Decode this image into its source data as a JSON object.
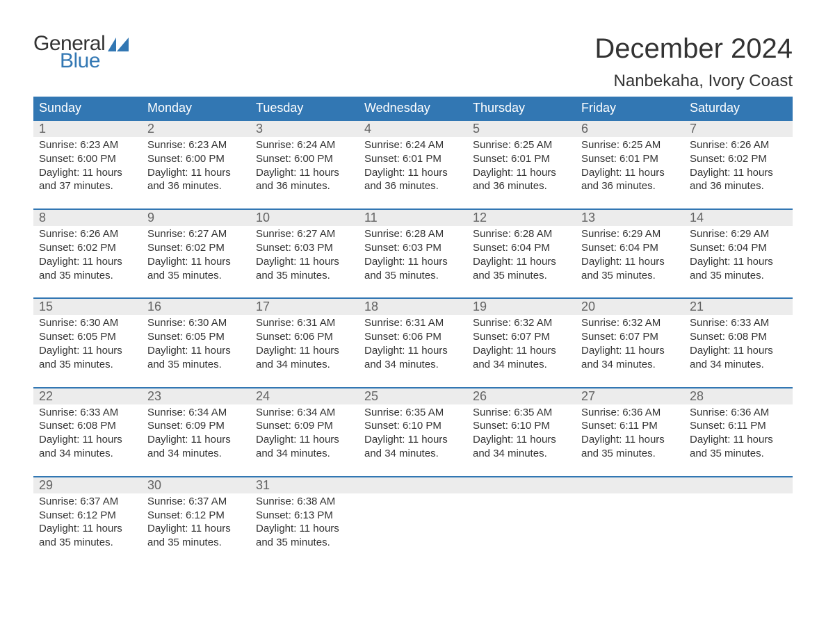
{
  "logo": {
    "word1": "General",
    "word2": "Blue",
    "flag_color": "#3277b3"
  },
  "title": "December 2024",
  "location": "Nanbekaha, Ivory Coast",
  "colors": {
    "header_bg": "#3277b3",
    "header_text": "#ffffff",
    "strip_bg": "#ececec",
    "daynum_text": "#636363",
    "body_text": "#333333",
    "rule": "#3277b3",
    "page_bg": "#ffffff"
  },
  "typography": {
    "month_title_pt": 40,
    "location_pt": 24,
    "dow_pt": 18,
    "daynum_pt": 18,
    "body_pt": 15,
    "logo_pt": 30
  },
  "days_of_week": [
    "Sunday",
    "Monday",
    "Tuesday",
    "Wednesday",
    "Thursday",
    "Friday",
    "Saturday"
  ],
  "weeks": [
    [
      {
        "n": "1",
        "sunrise": "Sunrise: 6:23 AM",
        "sunset": "Sunset: 6:00 PM",
        "dl1": "Daylight: 11 hours",
        "dl2": "and 37 minutes."
      },
      {
        "n": "2",
        "sunrise": "Sunrise: 6:23 AM",
        "sunset": "Sunset: 6:00 PM",
        "dl1": "Daylight: 11 hours",
        "dl2": "and 36 minutes."
      },
      {
        "n": "3",
        "sunrise": "Sunrise: 6:24 AM",
        "sunset": "Sunset: 6:00 PM",
        "dl1": "Daylight: 11 hours",
        "dl2": "and 36 minutes."
      },
      {
        "n": "4",
        "sunrise": "Sunrise: 6:24 AM",
        "sunset": "Sunset: 6:01 PM",
        "dl1": "Daylight: 11 hours",
        "dl2": "and 36 minutes."
      },
      {
        "n": "5",
        "sunrise": "Sunrise: 6:25 AM",
        "sunset": "Sunset: 6:01 PM",
        "dl1": "Daylight: 11 hours",
        "dl2": "and 36 minutes."
      },
      {
        "n": "6",
        "sunrise": "Sunrise: 6:25 AM",
        "sunset": "Sunset: 6:01 PM",
        "dl1": "Daylight: 11 hours",
        "dl2": "and 36 minutes."
      },
      {
        "n": "7",
        "sunrise": "Sunrise: 6:26 AM",
        "sunset": "Sunset: 6:02 PM",
        "dl1": "Daylight: 11 hours",
        "dl2": "and 36 minutes."
      }
    ],
    [
      {
        "n": "8",
        "sunrise": "Sunrise: 6:26 AM",
        "sunset": "Sunset: 6:02 PM",
        "dl1": "Daylight: 11 hours",
        "dl2": "and 35 minutes."
      },
      {
        "n": "9",
        "sunrise": "Sunrise: 6:27 AM",
        "sunset": "Sunset: 6:02 PM",
        "dl1": "Daylight: 11 hours",
        "dl2": "and 35 minutes."
      },
      {
        "n": "10",
        "sunrise": "Sunrise: 6:27 AM",
        "sunset": "Sunset: 6:03 PM",
        "dl1": "Daylight: 11 hours",
        "dl2": "and 35 minutes."
      },
      {
        "n": "11",
        "sunrise": "Sunrise: 6:28 AM",
        "sunset": "Sunset: 6:03 PM",
        "dl1": "Daylight: 11 hours",
        "dl2": "and 35 minutes."
      },
      {
        "n": "12",
        "sunrise": "Sunrise: 6:28 AM",
        "sunset": "Sunset: 6:04 PM",
        "dl1": "Daylight: 11 hours",
        "dl2": "and 35 minutes."
      },
      {
        "n": "13",
        "sunrise": "Sunrise: 6:29 AM",
        "sunset": "Sunset: 6:04 PM",
        "dl1": "Daylight: 11 hours",
        "dl2": "and 35 minutes."
      },
      {
        "n": "14",
        "sunrise": "Sunrise: 6:29 AM",
        "sunset": "Sunset: 6:04 PM",
        "dl1": "Daylight: 11 hours",
        "dl2": "and 35 minutes."
      }
    ],
    [
      {
        "n": "15",
        "sunrise": "Sunrise: 6:30 AM",
        "sunset": "Sunset: 6:05 PM",
        "dl1": "Daylight: 11 hours",
        "dl2": "and 35 minutes."
      },
      {
        "n": "16",
        "sunrise": "Sunrise: 6:30 AM",
        "sunset": "Sunset: 6:05 PM",
        "dl1": "Daylight: 11 hours",
        "dl2": "and 35 minutes."
      },
      {
        "n": "17",
        "sunrise": "Sunrise: 6:31 AM",
        "sunset": "Sunset: 6:06 PM",
        "dl1": "Daylight: 11 hours",
        "dl2": "and 34 minutes."
      },
      {
        "n": "18",
        "sunrise": "Sunrise: 6:31 AM",
        "sunset": "Sunset: 6:06 PM",
        "dl1": "Daylight: 11 hours",
        "dl2": "and 34 minutes."
      },
      {
        "n": "19",
        "sunrise": "Sunrise: 6:32 AM",
        "sunset": "Sunset: 6:07 PM",
        "dl1": "Daylight: 11 hours",
        "dl2": "and 34 minutes."
      },
      {
        "n": "20",
        "sunrise": "Sunrise: 6:32 AM",
        "sunset": "Sunset: 6:07 PM",
        "dl1": "Daylight: 11 hours",
        "dl2": "and 34 minutes."
      },
      {
        "n": "21",
        "sunrise": "Sunrise: 6:33 AM",
        "sunset": "Sunset: 6:08 PM",
        "dl1": "Daylight: 11 hours",
        "dl2": "and 34 minutes."
      }
    ],
    [
      {
        "n": "22",
        "sunrise": "Sunrise: 6:33 AM",
        "sunset": "Sunset: 6:08 PM",
        "dl1": "Daylight: 11 hours",
        "dl2": "and 34 minutes."
      },
      {
        "n": "23",
        "sunrise": "Sunrise: 6:34 AM",
        "sunset": "Sunset: 6:09 PM",
        "dl1": "Daylight: 11 hours",
        "dl2": "and 34 minutes."
      },
      {
        "n": "24",
        "sunrise": "Sunrise: 6:34 AM",
        "sunset": "Sunset: 6:09 PM",
        "dl1": "Daylight: 11 hours",
        "dl2": "and 34 minutes."
      },
      {
        "n": "25",
        "sunrise": "Sunrise: 6:35 AM",
        "sunset": "Sunset: 6:10 PM",
        "dl1": "Daylight: 11 hours",
        "dl2": "and 34 minutes."
      },
      {
        "n": "26",
        "sunrise": "Sunrise: 6:35 AM",
        "sunset": "Sunset: 6:10 PM",
        "dl1": "Daylight: 11 hours",
        "dl2": "and 34 minutes."
      },
      {
        "n": "27",
        "sunrise": "Sunrise: 6:36 AM",
        "sunset": "Sunset: 6:11 PM",
        "dl1": "Daylight: 11 hours",
        "dl2": "and 35 minutes."
      },
      {
        "n": "28",
        "sunrise": "Sunrise: 6:36 AM",
        "sunset": "Sunset: 6:11 PM",
        "dl1": "Daylight: 11 hours",
        "dl2": "and 35 minutes."
      }
    ],
    [
      {
        "n": "29",
        "sunrise": "Sunrise: 6:37 AM",
        "sunset": "Sunset: 6:12 PM",
        "dl1": "Daylight: 11 hours",
        "dl2": "and 35 minutes."
      },
      {
        "n": "30",
        "sunrise": "Sunrise: 6:37 AM",
        "sunset": "Sunset: 6:12 PM",
        "dl1": "Daylight: 11 hours",
        "dl2": "and 35 minutes."
      },
      {
        "n": "31",
        "sunrise": "Sunrise: 6:38 AM",
        "sunset": "Sunset: 6:13 PM",
        "dl1": "Daylight: 11 hours",
        "dl2": "and 35 minutes."
      },
      null,
      null,
      null,
      null
    ]
  ]
}
